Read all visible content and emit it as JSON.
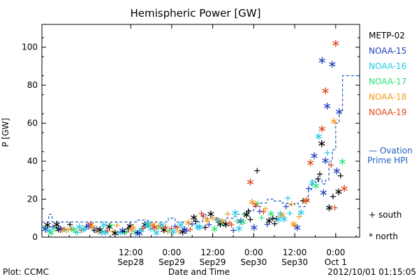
{
  "chart_data": {
    "type": "scatter",
    "title": "Hemispheric Power [GW]",
    "xlabel": "Date and Time",
    "ylabel": "P [GW]",
    "ylim": [
      0,
      112
    ],
    "yticks": [
      0,
      20,
      40,
      60,
      80,
      100
    ],
    "xlim_hours_label": "Sep 27 ~ 10:00 to Oct 1 ~ 00:00",
    "xticks": [
      {
        "top": "12:00",
        "bottom": "Sep28"
      },
      {
        "top": "0:00",
        "bottom": "Sep29"
      },
      {
        "top": "12:00",
        "bottom": "Sep29"
      },
      {
        "top": "0:00",
        "bottom": "Sep30"
      },
      {
        "top": "12:00",
        "bottom": "Sep30"
      },
      {
        "top": "0:00",
        "bottom": "Oct 1"
      }
    ],
    "legend": {
      "placement": "right",
      "entries": [
        {
          "name": "METP-02",
          "color": "#000000"
        },
        {
          "name": "NOAA-15",
          "color": "#1f3fbf"
        },
        {
          "name": "NOAA-16",
          "color": "#22c8e6"
        },
        {
          "name": "NOAA-17",
          "color": "#2ee07a"
        },
        {
          "name": "NOAA-18",
          "color": "#f59a1a"
        },
        {
          "name": "NOAA-19",
          "color": "#e0441c"
        }
      ]
    },
    "ovation_label": [
      "— Ovation",
      "Prime HPI"
    ],
    "ovation_color": "#1f5fbf",
    "marker_legend": {
      "south": "+ south",
      "north": "* north"
    },
    "series_highlights": [
      {
        "name": "NOAA-15",
        "x_hours": 82,
        "y": 93
      },
      {
        "name": "NOAA-15",
        "x_hours": 85,
        "y": 91
      },
      {
        "name": "NOAA-19",
        "x_hours": 86,
        "y": 102
      },
      {
        "name": "NOAA-19",
        "x_hours": 83,
        "y": 77
      },
      {
        "name": "NOAA-15",
        "x_hours": 83.5,
        "y": 69
      },
      {
        "name": "NOAA-15",
        "x_hours": 87,
        "y": 66
      },
      {
        "name": "NOAA-18",
        "x_hours": 85.5,
        "y": 61
      },
      {
        "name": "NOAA-16",
        "x_hours": 81,
        "y": 53
      },
      {
        "name": "NOAA-19",
        "x_hours": 82,
        "y": 57
      },
      {
        "name": "METP-02",
        "x_hours": 63,
        "y": 35
      },
      {
        "name": "NOAA-19",
        "x_hours": 61,
        "y": 29
      }
    ]
  },
  "footer": {
    "left": "Plot: CCMC",
    "center": "Date and Time",
    "right": "2012/10/01  01:15:05"
  }
}
